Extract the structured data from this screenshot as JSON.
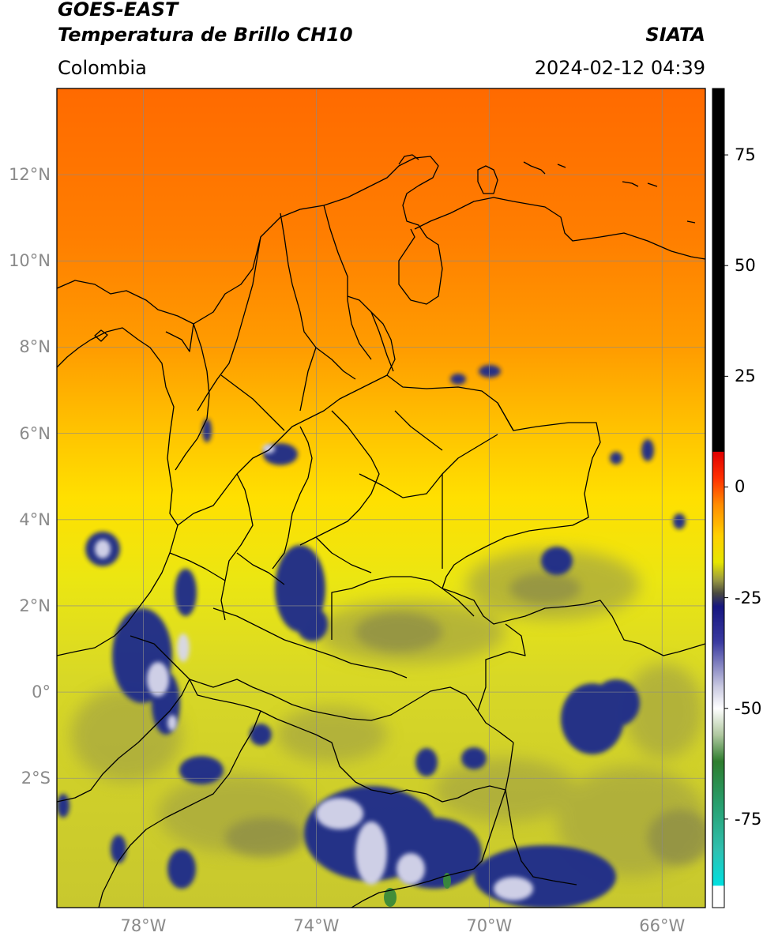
{
  "header": {
    "satellite": "GOES-EAST",
    "product": "Temperatura de Brillo CH10",
    "region": "Colombia",
    "agency": "SIATA",
    "datetime": "2024-02-12 04:39"
  },
  "map": {
    "lon_range": [
      -80,
      -65
    ],
    "lat_range": [
      -5,
      14
    ],
    "lat_ticks": [
      {
        "value": 12,
        "label": "12°N"
      },
      {
        "value": 10,
        "label": "10°N"
      },
      {
        "value": 8,
        "label": "8°N"
      },
      {
        "value": 6,
        "label": "6°N"
      },
      {
        "value": 4,
        "label": "4°N"
      },
      {
        "value": 2,
        "label": "2°N"
      },
      {
        "value": 0,
        "label": "0°"
      },
      {
        "value": -2,
        "label": "2°S"
      }
    ],
    "lon_ticks": [
      {
        "value": -78,
        "label": "78°W"
      },
      {
        "value": -74,
        "label": "74°W"
      },
      {
        "value": -70,
        "label": "70°W"
      },
      {
        "value": -66,
        "label": "66°W"
      }
    ],
    "gridlines": true,
    "field": "brightness_temperature",
    "colors": {
      "warm_north": "#ff6a00",
      "mid": "#ffd400",
      "yellow_south": "#dcdc1a",
      "olive": "#a8a840",
      "cold_navy": "#1e2a8c",
      "cold_white": "#e8e8f0",
      "coldest_green": "#3a8a3a",
      "border": "#000000",
      "grid": "#8a8a8a"
    }
  },
  "colorbar": {
    "range": [
      -95,
      90
    ],
    "ticks": [
      {
        "value": 75,
        "label": "75"
      },
      {
        "value": 50,
        "label": "50"
      },
      {
        "value": 25,
        "label": "25"
      },
      {
        "value": 0,
        "label": "0"
      },
      {
        "value": -25,
        "label": "-25"
      },
      {
        "value": -50,
        "label": "-50"
      },
      {
        "value": -75,
        "label": "-75"
      }
    ],
    "stops": [
      {
        "value": 90,
        "color": "#000000"
      },
      {
        "value": 8,
        "color": "#000000"
      },
      {
        "value": 7.9,
        "color": "#e00000"
      },
      {
        "value": 2,
        "color": "#ff3000"
      },
      {
        "value": -4,
        "color": "#ff8c00"
      },
      {
        "value": -11,
        "color": "#ffd000"
      },
      {
        "value": -17,
        "color": "#e6e600"
      },
      {
        "value": -21,
        "color": "#9a9a40"
      },
      {
        "value": -24,
        "color": "#4a4a40"
      },
      {
        "value": -27,
        "color": "#161680"
      },
      {
        "value": -35,
        "color": "#3a3aa0"
      },
      {
        "value": -45,
        "color": "#c8c8e0"
      },
      {
        "value": -50,
        "color": "#ffffff"
      },
      {
        "value": -56,
        "color": "#b0c8a0"
      },
      {
        "value": -62,
        "color": "#2e7d2e"
      },
      {
        "value": -72,
        "color": "#28a070"
      },
      {
        "value": -82,
        "color": "#30c0b0"
      },
      {
        "value": -90,
        "color": "#00e0e0"
      },
      {
        "value": -90.1,
        "color": "#ffffff"
      },
      {
        "value": -95,
        "color": "#ffffff"
      }
    ]
  }
}
